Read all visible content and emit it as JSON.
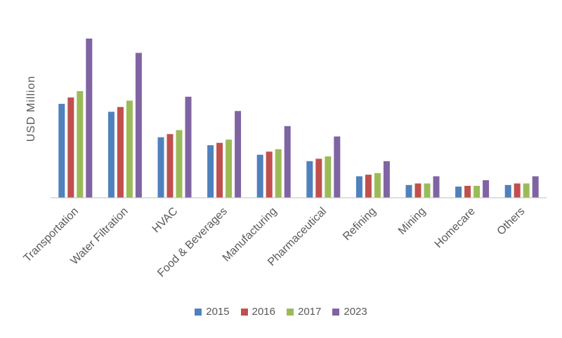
{
  "chart_data": {
    "type": "bar",
    "title": "",
    "xlabel": "",
    "ylabel": "USD Million",
    "ylim": [
      0,
      1000
    ],
    "grid": false,
    "legend_position": "bottom",
    "categories": [
      "Transportation",
      "Water Filtration",
      "HVAC",
      "Food & Beverages",
      "Manufacturing",
      "Pharmaceutical",
      "Refining",
      "Mining",
      "Homecare",
      "Others"
    ],
    "series": [
      {
        "name": "2015",
        "color": "#4f81bd",
        "values": [
          590,
          540,
          380,
          330,
          270,
          230,
          135,
          80,
          70,
          80
        ]
      },
      {
        "name": "2016",
        "color": "#c0504d",
        "values": [
          630,
          570,
          400,
          345,
          290,
          245,
          145,
          90,
          75,
          90
        ]
      },
      {
        "name": "2017",
        "color": "#9bbb59",
        "values": [
          670,
          610,
          425,
          365,
          305,
          260,
          155,
          90,
          75,
          90
        ]
      },
      {
        "name": "2023",
        "color": "#8064a2",
        "values": [
          1000,
          910,
          635,
          545,
          450,
          385,
          230,
          135,
          110,
          135
        ]
      }
    ]
  }
}
